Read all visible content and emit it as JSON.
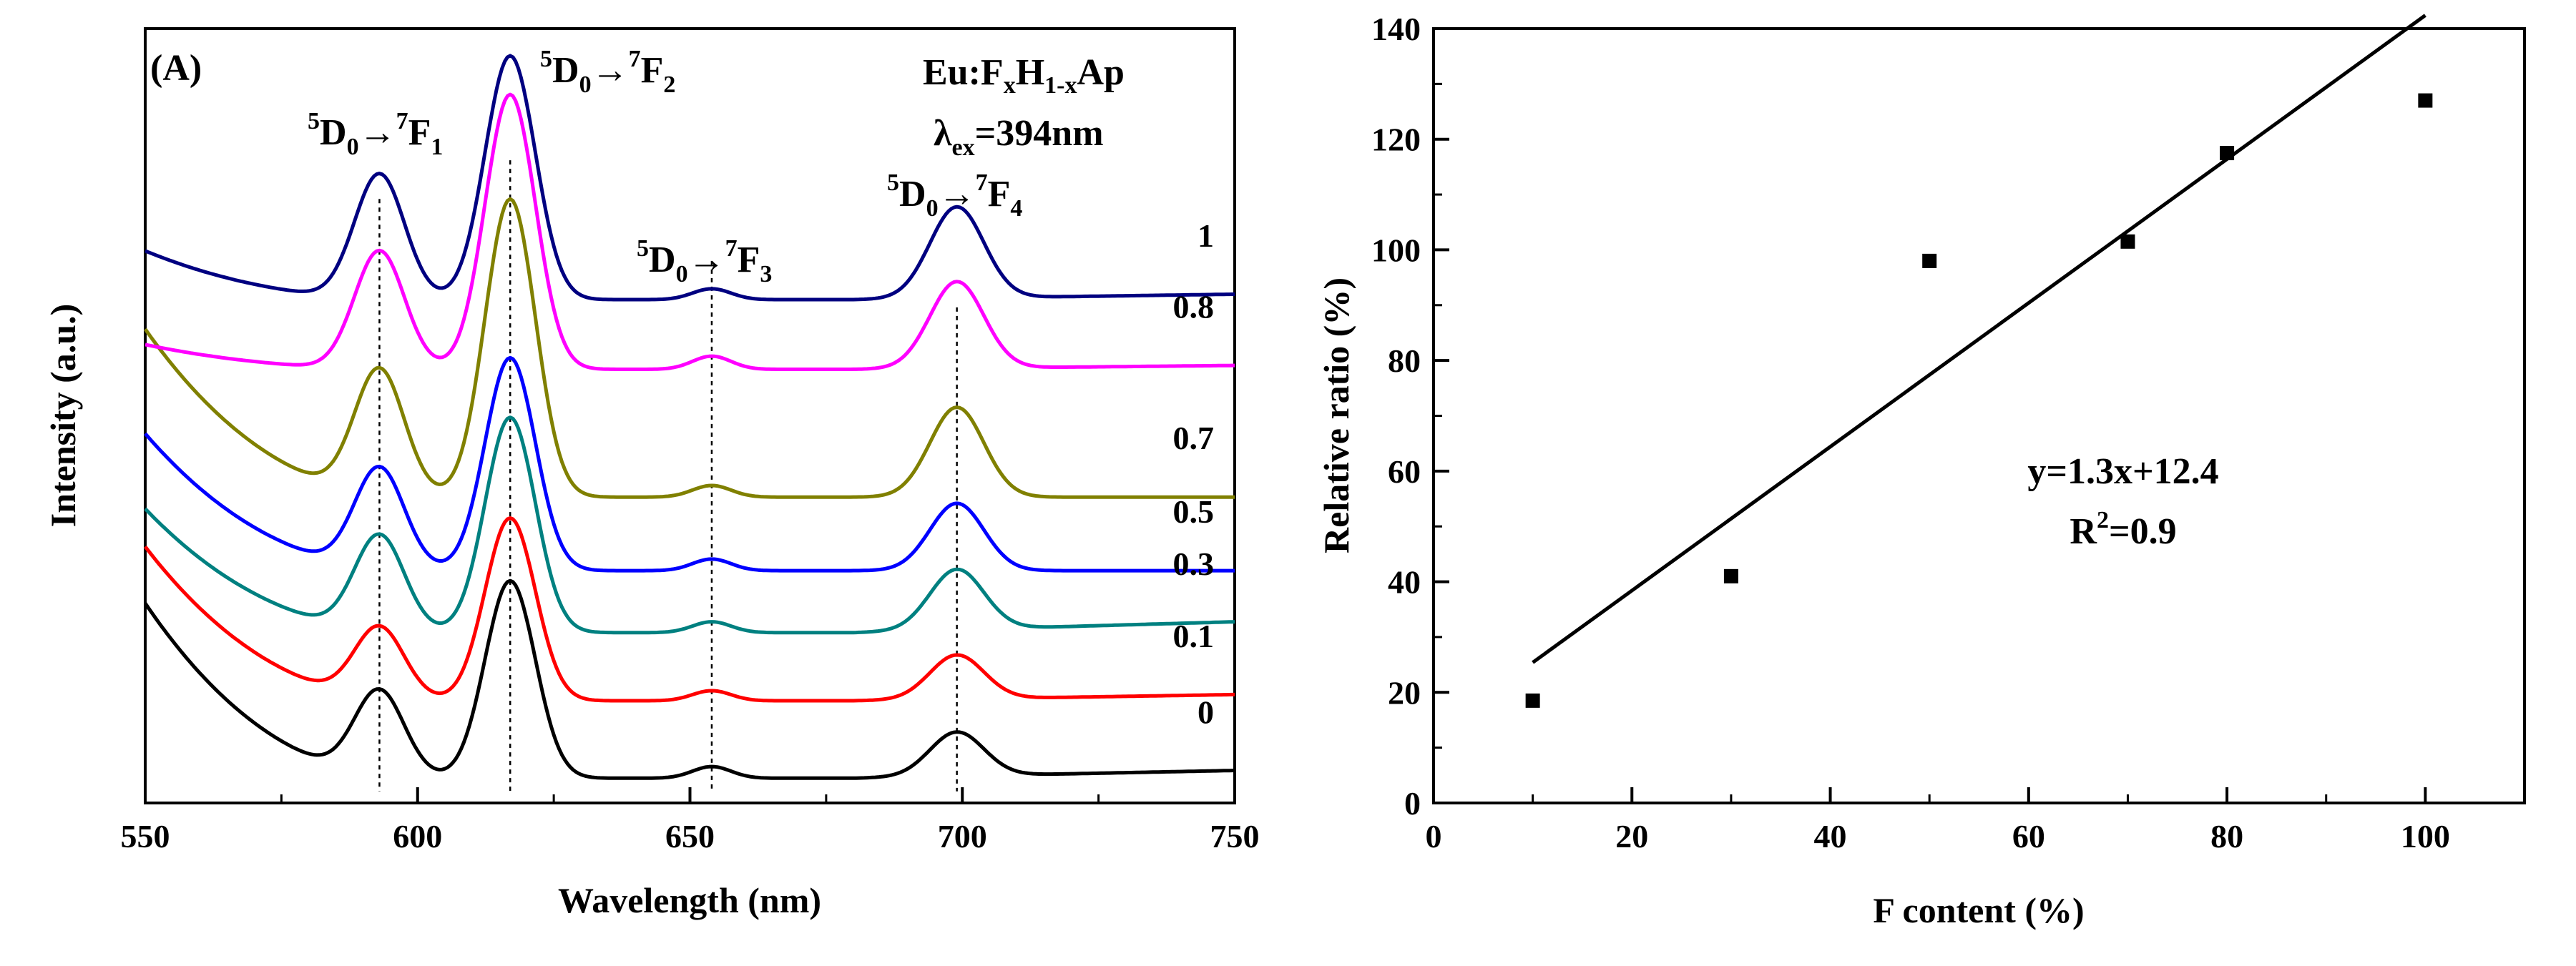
{
  "chart_data": [
    {
      "type": "line",
      "panel": "(A)",
      "xlabel": "Wavelength (nm)",
      "ylabel": "Intensity (a.u.)",
      "xlim": [
        550,
        750
      ],
      "ylim": [
        0,
        10
      ],
      "xticks": [
        "550",
        "600",
        "650",
        "700",
        "750"
      ],
      "yticks": [],
      "sample_label": {
        "base": "Eu:F",
        "s1": "x",
        "mid": "H",
        "s2": "1-x",
        "tail": "Ap"
      },
      "excitation_label": {
        "base": "λ",
        "sub": "ex",
        "tail": "=394nm"
      },
      "transitions": [
        {
          "name": "5D0→7F1",
          "sup1": "5",
          "lead": "D",
          "sub1": "0",
          "arrow": "→",
          "sup2": "7",
          "tail": "F",
          "sub2": "1",
          "wavelength": 593
        },
        {
          "name": "5D0→7F2",
          "sup1": "5",
          "lead": "D",
          "sub1": "0",
          "arrow": "→",
          "sup2": "7",
          "tail": "F",
          "sub2": "2",
          "wavelength": 617
        },
        {
          "name": "5D0→7F3",
          "sup1": "5",
          "lead": "D",
          "sub1": "0",
          "arrow": "→",
          "sup2": "7",
          "tail": "F",
          "sub2": "3",
          "wavelength": 654
        },
        {
          "name": "5D0→7F4",
          "sup1": "5",
          "lead": "D",
          "sub1": "0",
          "arrow": "→",
          "sup2": "7",
          "tail": "F",
          "sub2": "4",
          "wavelength": 699
        }
      ],
      "series": [
        {
          "name": "0",
          "color": "#000000",
          "baseline": 0.32,
          "start": 2.58,
          "end": 0.42,
          "peaks": [
            1.12,
            2.55,
            0.15,
            0.57
          ]
        },
        {
          "name": "0.1",
          "color": "#ff0000",
          "baseline": 1.32,
          "start": 3.31,
          "end": 1.4,
          "peaks": [
            0.94,
            2.36,
            0.13,
            0.57
          ]
        },
        {
          "name": "0.3",
          "color": "#008080",
          "baseline": 2.2,
          "start": 3.8,
          "end": 2.34,
          "peaks": [
            1.25,
            2.78,
            0.14,
            0.78
          ]
        },
        {
          "name": "0.5",
          "color": "#0000ff",
          "baseline": 3.0,
          "start": 4.77,
          "end": 3.0,
          "peaks": [
            1.32,
            2.75,
            0.15,
            0.87
          ]
        },
        {
          "name": "0.7",
          "color": "#808000",
          "baseline": 3.95,
          "start": 6.12,
          "end": 3.95,
          "peaks": [
            1.64,
            3.85,
            0.15,
            1.16
          ]
        },
        {
          "name": "0.8",
          "color": "#ff00ff",
          "baseline": 5.6,
          "start": 5.92,
          "end": 5.65,
          "peaks": [
            1.53,
            3.55,
            0.17,
            1.12
          ]
        },
        {
          "name": "1",
          "color": "#000080",
          "baseline": 6.5,
          "start": 7.13,
          "end": 6.57,
          "peaks": [
            1.62,
            3.15,
            0.14,
            1.18
          ]
        }
      ]
    },
    {
      "type": "scatter",
      "xlabel": "F content (%)",
      "ylabel": "Relative ratio (%)",
      "xlim": [
        0,
        110
      ],
      "ylim": [
        0,
        140
      ],
      "xticks": [
        "0",
        "20",
        "40",
        "60",
        "80",
        "100"
      ],
      "yticks": [
        "0",
        "20",
        "40",
        "60",
        "80",
        "100",
        "120",
        "140"
      ],
      "points": [
        {
          "x": 10,
          "y": 18.5
        },
        {
          "x": 30,
          "y": 41
        },
        {
          "x": 50,
          "y": 98
        },
        {
          "x": 70,
          "y": 101.5
        },
        {
          "x": 80,
          "y": 117.5
        },
        {
          "x": 100,
          "y": 127
        }
      ],
      "fit": {
        "slope": 1.3,
        "intercept": 12.4,
        "x_range": [
          10,
          100
        ]
      },
      "fit_equation": "y=1.3x+12.4",
      "r2_label": {
        "base": "R",
        "sup": "2",
        "tail": "=0.9"
      }
    }
  ]
}
